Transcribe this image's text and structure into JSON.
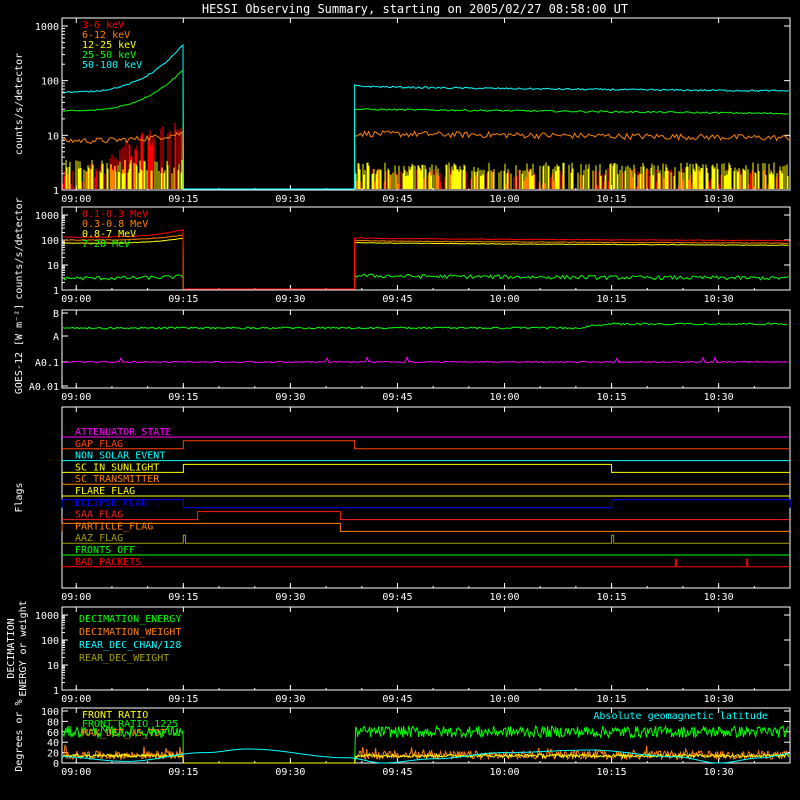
{
  "title": "HESSI Observing Summary, starting on 2005/02/27 08:58:00 UT",
  "time_axis": {
    "range": [
      "08:58",
      "10:40"
    ],
    "tick_labels": [
      "09:00",
      "09:15",
      "09:30",
      "09:45",
      "10:00",
      "10:15",
      "10:30"
    ]
  },
  "chart_data": [
    {
      "type": "line",
      "ylabel": "counts/s/detector",
      "yscale": "log",
      "ylim": [
        1,
        1000
      ],
      "ytick_labels": [
        "1",
        "10",
        "100",
        "1000"
      ],
      "gap": [
        "09:15",
        "09:39"
      ],
      "series": [
        {
          "name": "3-6 keV",
          "color": "#ff0000",
          "start": 1.5,
          "end_pre_gap": 15,
          "post_gap_level": 1.6
        },
        {
          "name": "6-12 keV",
          "color": "#ff8000",
          "start": 8,
          "end_pre_gap": 11,
          "post_gap_level": 9
        },
        {
          "name": "12-25 keV",
          "color": "#ffff00",
          "start": 2,
          "end_pre_gap": 4,
          "post_gap_level": 2.5
        },
        {
          "name": "25-50 keV",
          "color": "#00ff00",
          "start": 28,
          "end_pre_gap": 160,
          "post_gap_level": 25
        },
        {
          "name": "50-100 keV",
          "color": "#00ffff",
          "start": 62,
          "end_pre_gap": 460,
          "post_gap_level": 65
        }
      ]
    },
    {
      "type": "line",
      "ylabel": "counts/s/detector",
      "yscale": "log",
      "ylim": [
        1,
        1000
      ],
      "ytick_labels": [
        "1",
        "10",
        "100",
        "1000"
      ],
      "gap": [
        "09:15",
        "09:39"
      ],
      "series": [
        {
          "name": "0.1-0.3 MeV",
          "color": "#ff0000",
          "start": 130,
          "end_pre_gap": 260,
          "post_gap_level": 95
        },
        {
          "name": "0.3-0.8 MeV",
          "color": "#ff8000",
          "start": 100,
          "end_pre_gap": 160,
          "post_gap_level": 75
        },
        {
          "name": "0.8-7 MeV",
          "color": "#ffff00",
          "start": 75,
          "end_pre_gap": 120,
          "post_gap_level": 62
        },
        {
          "name": "7-20 MeV",
          "color": "#00ff00",
          "start": 3,
          "end_pre_gap": 3.5,
          "post_gap_level": 3
        }
      ]
    },
    {
      "type": "line",
      "ylabel": "GOES-12 [W m⁻²]",
      "yscale": "log",
      "ytick_labels": [
        "A0.01",
        "A0.1",
        "A",
        "B"
      ],
      "series": [
        {
          "color": "#00ff00",
          "level": "A",
          "end_level": "A+"
        },
        {
          "color": "#ff00ff",
          "level": "A0.1"
        }
      ]
    },
    {
      "type": "flags",
      "ylabel": "Flags",
      "flags": [
        {
          "name": "ATTENUATOR_STATE",
          "color": "#ff00ff",
          "on": []
        },
        {
          "name": "GAP_FLAG",
          "color": "#ff4000",
          "on": [
            [
              "09:15",
              "09:39"
            ]
          ]
        },
        {
          "name": "NON_SOLAR_EVENT",
          "color": "#00ffff",
          "on": []
        },
        {
          "name": "SC_IN_SUNLIGHT",
          "color": "#ffff00",
          "on": [
            [
              "09:15",
              "10:15"
            ]
          ]
        },
        {
          "name": "SC_TRANSMITTER",
          "color": "#ff8000",
          "on": []
        },
        {
          "name": "FLARE_FLAG",
          "color": "#ffff00",
          "on": []
        },
        {
          "name": "ECLIPSE_FLAG",
          "color": "#0000ff",
          "on": [
            [
              "08:58",
              "09:15"
            ],
            [
              "10:15",
              "10:40"
            ]
          ]
        },
        {
          "name": "SAA_FLAG",
          "color": "#ff2020",
          "on": [
            [
              "09:17",
              "09:37"
            ]
          ]
        },
        {
          "name": "PARTICLE_FLAG",
          "color": "#ff8000",
          "on": [
            [
              "08:58",
              "09:37"
            ]
          ]
        },
        {
          "name": "AAZ_FLAG",
          "color": "#a0a000",
          "on": [
            [
              "09:15",
              "09:15.3"
            ],
            [
              "10:15",
              "10:15.3"
            ]
          ]
        },
        {
          "name": "FRONTS_OFF",
          "color": "#00ff00",
          "on": []
        },
        {
          "name": "BAD_PACKETS",
          "color": "#ff0000",
          "spikes": [
            "10:24",
            "10:34"
          ]
        }
      ]
    },
    {
      "type": "line",
      "ylabel": "DECIMATION ENERGY or weight",
      "yscale": "log",
      "ytick_labels": [
        "1",
        "10",
        "100",
        "1000"
      ],
      "series": [
        {
          "name": "DECIMATION_ENERGY",
          "color": "#00ff00"
        },
        {
          "name": "DECIMATION_WEIGHT",
          "color": "#ff8000"
        },
        {
          "name": "REAR_DEC_CHAN/128",
          "color": "#00ffff"
        },
        {
          "name": "REAR_DEC_WEIGHT",
          "color": "#a0a000"
        }
      ]
    },
    {
      "type": "line",
      "ylabel": "Degrees or %",
      "ylim": [
        0,
        100
      ],
      "ytick_labels": [
        "0",
        "20",
        "40",
        "60",
        "80",
        "100"
      ],
      "annotation": "Absolute geomagnetic latitude",
      "series": [
        {
          "name": "FRONT_RATIO",
          "color": "#ffff00",
          "level": 15
        },
        {
          "name": "FRONT_RATIO_1225",
          "color": "#00ff00",
          "level": 60
        },
        {
          "name": "MAX_DET_VS_TOT",
          "color": "#ff8000",
          "level": 15
        },
        {
          "color": "#00ffff",
          "curve": "geomagnetic latitude"
        }
      ]
    }
  ]
}
